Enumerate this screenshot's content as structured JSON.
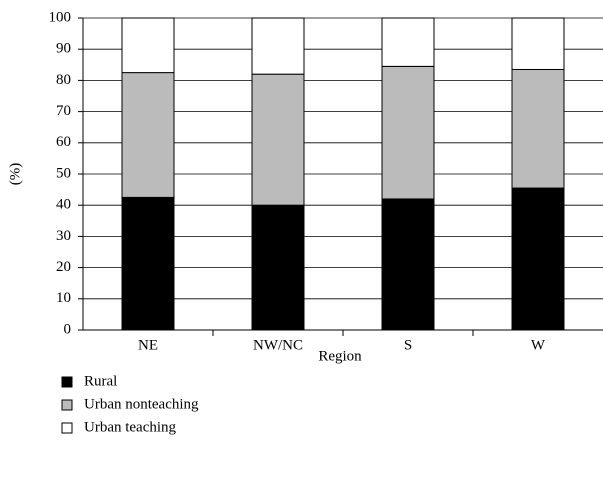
{
  "chart_data": {
    "type": "stacked_bar",
    "x_label": "Region",
    "y_label": "(%)",
    "categories": [
      "NE",
      "NW/NC",
      "S",
      "W"
    ],
    "series": [
      {
        "name": "Rural",
        "color": "#000000",
        "values": [
          42.5,
          40,
          42,
          45.5
        ]
      },
      {
        "name": "Urban nonteaching",
        "color": "#bbbbbb",
        "values": [
          40,
          42,
          42.5,
          38
        ]
      },
      {
        "name": "Urban teaching",
        "color": "#ffffff",
        "values": [
          17.5,
          18,
          15.5,
          16.5
        ]
      }
    ],
    "ylim": [
      0,
      100
    ],
    "yticks": [
      0,
      10,
      20,
      30,
      40,
      50,
      60,
      70,
      80,
      90,
      100
    ],
    "grid": true,
    "legend": "bottom-left"
  }
}
